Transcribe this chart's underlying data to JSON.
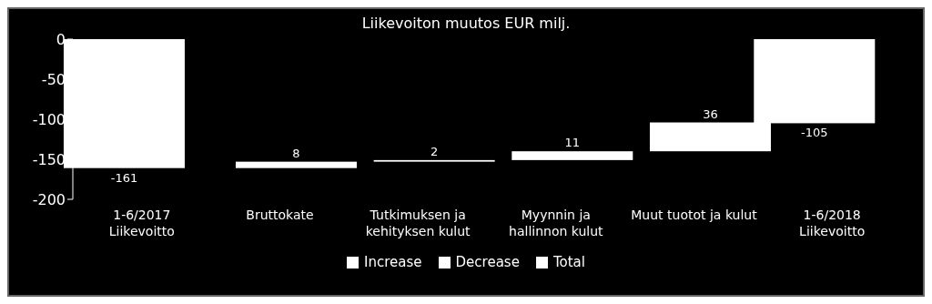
{
  "chart_data": {
    "type": "bar",
    "title": "Liikevoiton muutos EUR milj.",
    "categories": [
      "1-6/2017\nLiikevoitto",
      "Bruttokate",
      "Tutkimuksen ja\nkehityksen kulut",
      "Myynnin ja\nhallinnon kulut",
      "Muut tuotot ja kulut",
      "1-6/2018\nLiikevoitto"
    ],
    "series": [
      {
        "name": "Increase",
        "color": "#ffffff",
        "values": [
          null,
          8,
          2,
          11,
          36,
          null
        ],
        "base": [
          null,
          -161,
          -153,
          -151,
          -140,
          null
        ]
      },
      {
        "name": "Decrease",
        "color": "#ffffff",
        "values": [
          null,
          null,
          null,
          null,
          null,
          null
        ]
      },
      {
        "name": "Total",
        "color": "#ffffff",
        "values": [
          -161,
          null,
          null,
          null,
          null,
          -105
        ]
      }
    ],
    "ylim": [
      -200,
      0
    ],
    "yticks": [
      0,
      -50,
      -100,
      -150,
      -200
    ],
    "data_labels": true,
    "legend": "bottom"
  }
}
